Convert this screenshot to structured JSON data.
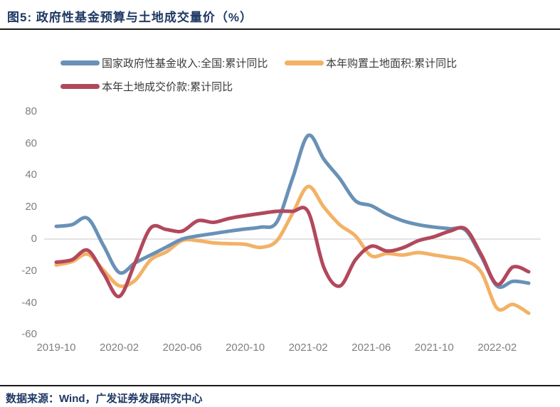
{
  "header": {
    "title": "图5:  政府性基金预算与土地成交量价（%）"
  },
  "footer": {
    "source": "数据来源：Wind，广发证券发展研究中心"
  },
  "colors": {
    "title_navy": "#1F3864",
    "rule_dark": "#1b1b1b",
    "axis_label_gray": "#7F7F7F",
    "zero_line_gray": "#D0D0D0",
    "series_blue": "#6991B7",
    "series_orange": "#F2B265",
    "series_red": "#B2485C"
  },
  "chart_data": {
    "type": "line",
    "title": "政府性基金预算与土地成交量价（%）",
    "xlabel": "",
    "ylabel": "",
    "ylim": [
      -60,
      80
    ],
    "yticks": [
      "80",
      "60",
      "40",
      "20",
      "0",
      "-20",
      "-40",
      "-60"
    ],
    "ytick_values": [
      80,
      60,
      40,
      20,
      0,
      -20,
      -40,
      -60
    ],
    "xticks": [
      "2019-10",
      "2020-02",
      "2020-06",
      "2020-10",
      "2021-02",
      "2021-06",
      "2021-10",
      "2022-02"
    ],
    "xtick_month_indices": [
      0,
      4,
      8,
      12,
      16,
      20,
      24,
      28
    ],
    "grid": "zero-line-only",
    "legend_position": "top-left",
    "line_width": 5,
    "x": [
      "2019-10",
      "2019-11",
      "2019-12",
      "2020-01",
      "2020-02",
      "2020-03",
      "2020-04",
      "2020-05",
      "2020-06",
      "2020-07",
      "2020-08",
      "2020-09",
      "2020-10",
      "2020-11",
      "2020-12",
      "2021-01",
      "2021-02",
      "2021-03",
      "2021-04",
      "2021-05",
      "2021-06",
      "2021-07",
      "2021-08",
      "2021-09",
      "2021-10",
      "2021-11",
      "2021-12",
      "2022-01",
      "2022-02",
      "2022-03",
      "2022-04"
    ],
    "series": [
      {
        "name": "国家政府性基金收入:全国:累计同比",
        "color": "#6991B7",
        "values": [
          8,
          9,
          13,
          -4,
          -21,
          -15,
          -10,
          -5,
          0,
          2,
          3.5,
          5,
          6.3,
          7.5,
          10.6,
          38,
          65,
          50,
          38,
          24,
          21,
          15.5,
          11.5,
          9,
          7.5,
          6.5,
          5.5,
          -11,
          -29.5,
          -26.5,
          -27.7
        ]
      },
      {
        "name": "本年购置土地面积:累计同比",
        "color": "#F2B265",
        "values": [
          -16.3,
          -14.2,
          -9.5,
          -19.5,
          -29.3,
          -26,
          -13,
          -8,
          -0.9,
          -1,
          -2.4,
          -2.9,
          -3.3,
          -5.2,
          -1.1,
          16,
          33,
          20,
          9,
          2,
          -10.5,
          -9,
          -10,
          -8.5,
          -10,
          -11.5,
          -13.5,
          -21,
          -43.5,
          -41,
          -46.5
        ]
      },
      {
        "name": "本年土地成交价款:累计同比",
        "color": "#B2485C",
        "values": [
          -14.5,
          -13,
          -7,
          -21.5,
          -36,
          -15,
          7,
          6,
          5,
          11.5,
          10.5,
          13,
          14.7,
          16.1,
          17.4,
          17.4,
          17.1,
          -18,
          -29.5,
          -13,
          -4.5,
          -7.5,
          -5.5,
          -1,
          1.5,
          5,
          6.3,
          -10,
          -28.5,
          -17.5,
          -20.5
        ]
      }
    ]
  }
}
